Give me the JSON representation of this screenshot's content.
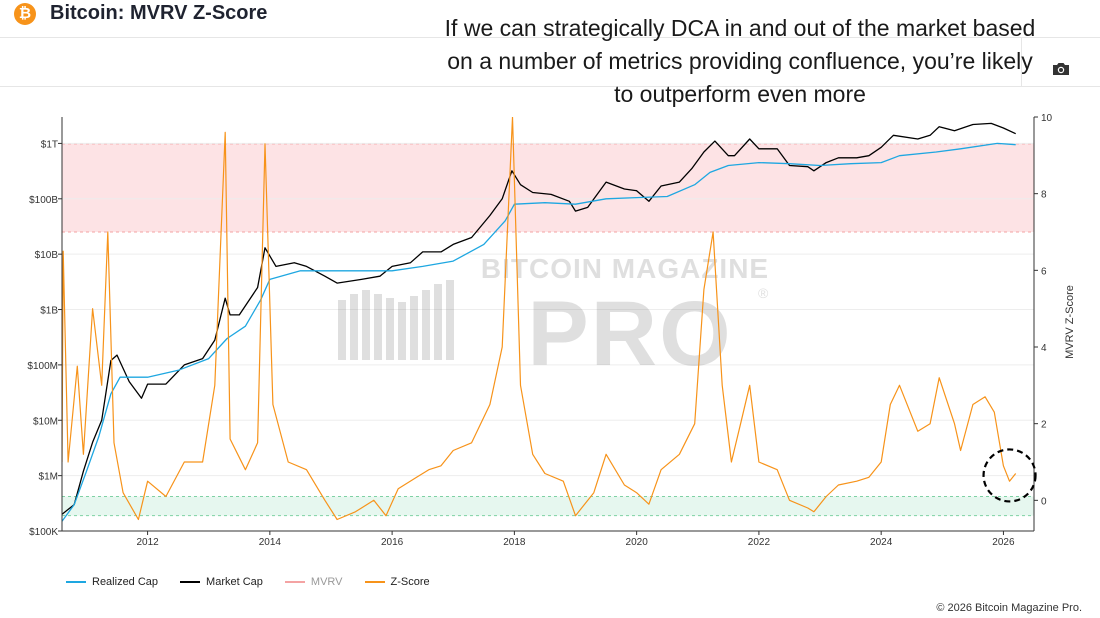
{
  "header": {
    "logo_glyph": "₿",
    "title": "Bitcoin: MVRV Z-Score"
  },
  "annotation": {
    "text": "If we can strategically DCA in and out of the market based on a number of metrics providing confluence, you’re likely to outperform even more"
  },
  "toolbar": {
    "camera_icon": "camera-icon"
  },
  "watermark": {
    "line1": "BITCOIN MAGAZINE",
    "line2": "PRO",
    "mark": "®"
  },
  "legend": [
    {
      "label": "Realized Cap",
      "color": "#1ea7e1"
    },
    {
      "label": "Market Cap",
      "color": "#000000"
    },
    {
      "label": "MVRV",
      "color": "#f4a3a3"
    },
    {
      "label": "Z-Score",
      "color": "#f7931a"
    }
  ],
  "copyright": "© 2026 Bitcoin Magazine Pro.",
  "chart_data": {
    "type": "line",
    "title": "Bitcoin: MVRV Z-Score",
    "x_ticks": [
      "2012",
      "2014",
      "2016",
      "2018",
      "2020",
      "2022",
      "2024",
      "2026"
    ],
    "x_range": [
      2010.6,
      2026.5
    ],
    "left_axis": {
      "scale": "log",
      "range": [
        100000,
        3000000000000
      ],
      "ticks": [
        "$100K",
        "$1M",
        "$10M",
        "$100M",
        "$1B",
        "$10B",
        "$100B",
        "$1T"
      ],
      "tick_values": [
        100000.0,
        1000000.0,
        10000000.0,
        100000000.0,
        1000000000.0,
        10000000000.0,
        100000000000.0,
        1000000000000.0
      ]
    },
    "right_axis": {
      "label": "MVRV Z-Score",
      "range": [
        -0.8,
        10
      ],
      "ticks": [
        "0",
        "2",
        "4",
        "6",
        "8",
        "10"
      ],
      "tick_values": [
        0,
        2,
        4,
        6,
        8,
        10
      ]
    },
    "bands": [
      {
        "name": "overvalued",
        "from": 7,
        "to": 9.3,
        "color": "#fde3e5",
        "line_color": "#f4a3a3"
      },
      {
        "name": "undervalued",
        "from": -0.4,
        "to": 0.1,
        "color": "#e6f7ef",
        "line_color": "#7fd1a4"
      }
    ],
    "series": [
      {
        "name": "Market Cap",
        "axis": "left",
        "color": "#000000",
        "points": [
          [
            2010.6,
            200000.0
          ],
          [
            2010.8,
            300000.0
          ],
          [
            2010.95,
            1200000.0
          ],
          [
            2011.1,
            4000000.0
          ],
          [
            2011.25,
            10000000.0
          ],
          [
            2011.4,
            120000000.0
          ],
          [
            2011.5,
            150000000.0
          ],
          [
            2011.7,
            50000000.0
          ],
          [
            2011.9,
            25000000.0
          ],
          [
            2012.0,
            45000000.0
          ],
          [
            2012.3,
            45000000.0
          ],
          [
            2012.6,
            100000000.0
          ],
          [
            2012.9,
            130000000.0
          ],
          [
            2013.1,
            280000000.0
          ],
          [
            2013.27,
            1600000000.0
          ],
          [
            2013.35,
            800000000.0
          ],
          [
            2013.5,
            800000000.0
          ],
          [
            2013.8,
            2500000000.0
          ],
          [
            2013.92,
            13000000000.0
          ],
          [
            2014.1,
            6000000000.0
          ],
          [
            2014.4,
            7000000000.0
          ],
          [
            2014.6,
            6000000000.0
          ],
          [
            2014.9,
            4000000000.0
          ],
          [
            2015.1,
            3000000000.0
          ],
          [
            2015.5,
            3500000000.0
          ],
          [
            2015.8,
            4000000000.0
          ],
          [
            2016.0,
            6000000000.0
          ],
          [
            2016.3,
            7000000000.0
          ],
          [
            2016.5,
            11000000000.0
          ],
          [
            2016.8,
            11000000000.0
          ],
          [
            2017.0,
            15000000000.0
          ],
          [
            2017.3,
            20000000000.0
          ],
          [
            2017.6,
            50000000000.0
          ],
          [
            2017.8,
            100000000000.0
          ],
          [
            2017.96,
            320000000000.0
          ],
          [
            2018.1,
            180000000000.0
          ],
          [
            2018.3,
            130000000000.0
          ],
          [
            2018.6,
            120000000000.0
          ],
          [
            2018.9,
            90000000000.0
          ],
          [
            2019.0,
            60000000000.0
          ],
          [
            2019.2,
            70000000000.0
          ],
          [
            2019.5,
            200000000000.0
          ],
          [
            2019.8,
            150000000000.0
          ],
          [
            2020.0,
            140000000000.0
          ],
          [
            2020.2,
            90000000000.0
          ],
          [
            2020.4,
            170000000000.0
          ],
          [
            2020.7,
            200000000000.0
          ],
          [
            2020.9,
            350000000000.0
          ],
          [
            2021.1,
            700000000000.0
          ],
          [
            2021.28,
            1100000000000.0
          ],
          [
            2021.5,
            600000000000.0
          ],
          [
            2021.6,
            600000000000.0
          ],
          [
            2021.85,
            1200000000000.0
          ],
          [
            2022.0,
            800000000000.0
          ],
          [
            2022.3,
            800000000000.0
          ],
          [
            2022.5,
            400000000000.0
          ],
          [
            2022.8,
            380000000000.0
          ],
          [
            2022.9,
            320000000000.0
          ],
          [
            2023.1,
            450000000000.0
          ],
          [
            2023.3,
            550000000000.0
          ],
          [
            2023.6,
            550000000000.0
          ],
          [
            2023.8,
            600000000000.0
          ],
          [
            2024.0,
            850000000000.0
          ],
          [
            2024.2,
            1400000000000.0
          ],
          [
            2024.6,
            1200000000000.0
          ],
          [
            2024.8,
            1400000000000.0
          ],
          [
            2024.95,
            2000000000000.0
          ],
          [
            2025.2,
            1700000000000.0
          ],
          [
            2025.5,
            2200000000000.0
          ],
          [
            2025.8,
            2300000000000.0
          ],
          [
            2026.0,
            1900000000000.0
          ],
          [
            2026.2,
            1500000000000.0
          ]
        ]
      },
      {
        "name": "Realized Cap",
        "axis": "left",
        "color": "#1ea7e1",
        "points": [
          [
            2010.6,
            150000.0
          ],
          [
            2010.8,
            300000.0
          ],
          [
            2011.0,
            1200000.0
          ],
          [
            2011.2,
            5000000.0
          ],
          [
            2011.4,
            30000000.0
          ],
          [
            2011.55,
            60000000.0
          ],
          [
            2011.8,
            60000000.0
          ],
          [
            2012.0,
            60000000.0
          ],
          [
            2012.5,
            80000000.0
          ],
          [
            2013.0,
            130000000.0
          ],
          [
            2013.3,
            300000000.0
          ],
          [
            2013.6,
            500000000.0
          ],
          [
            2013.85,
            1500000000.0
          ],
          [
            2014.0,
            3500000000.0
          ],
          [
            2014.5,
            5000000000.0
          ],
          [
            2015.0,
            5000000000.0
          ],
          [
            2015.5,
            5000000000.0
          ],
          [
            2016.0,
            5000000000.0
          ],
          [
            2016.5,
            6000000000.0
          ],
          [
            2017.0,
            7500000000.0
          ],
          [
            2017.5,
            15000000000.0
          ],
          [
            2017.85,
            40000000000.0
          ],
          [
            2018.0,
            80000000000.0
          ],
          [
            2018.5,
            85000000000.0
          ],
          [
            2019.0,
            80000000000.0
          ],
          [
            2019.5,
            100000000000.0
          ],
          [
            2020.0,
            105000000000.0
          ],
          [
            2020.5,
            110000000000.0
          ],
          [
            2020.95,
            180000000000.0
          ],
          [
            2021.2,
            300000000000.0
          ],
          [
            2021.5,
            400000000000.0
          ],
          [
            2022.0,
            450000000000.0
          ],
          [
            2022.5,
            430000000000.0
          ],
          [
            2023.0,
            400000000000.0
          ],
          [
            2023.5,
            430000000000.0
          ],
          [
            2024.0,
            450000000000.0
          ],
          [
            2024.3,
            600000000000.0
          ],
          [
            2024.9,
            700000000000.0
          ],
          [
            2025.3,
            800000000000.0
          ],
          [
            2025.9,
            1000000000000.0
          ],
          [
            2026.2,
            950000000000.0
          ]
        ]
      },
      {
        "name": "Z-Score",
        "axis": "right",
        "color": "#f7931a",
        "points": [
          [
            2010.6,
            1.0
          ],
          [
            2010.62,
            6.5
          ],
          [
            2010.7,
            1.0
          ],
          [
            2010.85,
            3.5
          ],
          [
            2010.95,
            1.2
          ],
          [
            2011.1,
            5.0
          ],
          [
            2011.25,
            3.0
          ],
          [
            2011.35,
            7.0
          ],
          [
            2011.45,
            1.5
          ],
          [
            2011.6,
            0.2
          ],
          [
            2011.85,
            -0.5
          ],
          [
            2012.0,
            0.5
          ],
          [
            2012.3,
            0.1
          ],
          [
            2012.6,
            1.0
          ],
          [
            2012.9,
            1.0
          ],
          [
            2013.1,
            3.0
          ],
          [
            2013.27,
            9.6
          ],
          [
            2013.35,
            1.6
          ],
          [
            2013.6,
            0.8
          ],
          [
            2013.8,
            1.5
          ],
          [
            2013.92,
            9.3
          ],
          [
            2014.05,
            2.5
          ],
          [
            2014.3,
            1.0
          ],
          [
            2014.6,
            0.8
          ],
          [
            2014.9,
            0.0
          ],
          [
            2015.1,
            -0.5
          ],
          [
            2015.4,
            -0.3
          ],
          [
            2015.7,
            0.0
          ],
          [
            2015.9,
            -0.4
          ],
          [
            2016.1,
            0.3
          ],
          [
            2016.4,
            0.6
          ],
          [
            2016.6,
            0.8
          ],
          [
            2016.8,
            0.9
          ],
          [
            2017.0,
            1.3
          ],
          [
            2017.3,
            1.5
          ],
          [
            2017.6,
            2.5
          ],
          [
            2017.8,
            4.0
          ],
          [
            2017.97,
            10.0
          ],
          [
            2018.1,
            3.0
          ],
          [
            2018.3,
            1.2
          ],
          [
            2018.5,
            0.7
          ],
          [
            2018.8,
            0.5
          ],
          [
            2019.0,
            -0.4
          ],
          [
            2019.3,
            0.2
          ],
          [
            2019.5,
            1.2
          ],
          [
            2019.8,
            0.4
          ],
          [
            2020.0,
            0.2
          ],
          [
            2020.2,
            -0.1
          ],
          [
            2020.4,
            0.8
          ],
          [
            2020.7,
            1.2
          ],
          [
            2020.95,
            2.0
          ],
          [
            2021.1,
            5.5
          ],
          [
            2021.25,
            7.0
          ],
          [
            2021.4,
            3.0
          ],
          [
            2021.55,
            1.0
          ],
          [
            2021.7,
            2.0
          ],
          [
            2021.85,
            3.0
          ],
          [
            2022.0,
            1.0
          ],
          [
            2022.3,
            0.8
          ],
          [
            2022.5,
            0.0
          ],
          [
            2022.8,
            -0.2
          ],
          [
            2022.9,
            -0.3
          ],
          [
            2023.1,
            0.1
          ],
          [
            2023.3,
            0.4
          ],
          [
            2023.6,
            0.5
          ],
          [
            2023.8,
            0.6
          ],
          [
            2024.0,
            1.0
          ],
          [
            2024.15,
            2.5
          ],
          [
            2024.3,
            3.0
          ],
          [
            2024.6,
            1.8
          ],
          [
            2024.8,
            2.0
          ],
          [
            2024.95,
            3.2
          ],
          [
            2025.2,
            2.0
          ],
          [
            2025.3,
            1.3
          ],
          [
            2025.5,
            2.5
          ],
          [
            2025.7,
            2.7
          ],
          [
            2025.85,
            2.3
          ],
          [
            2026.0,
            0.9
          ],
          [
            2026.1,
            0.5
          ],
          [
            2026.2,
            0.7
          ]
        ]
      }
    ],
    "highlight": {
      "shape": "dashed-circle",
      "x": 2026.1,
      "y": 0.65
    }
  }
}
